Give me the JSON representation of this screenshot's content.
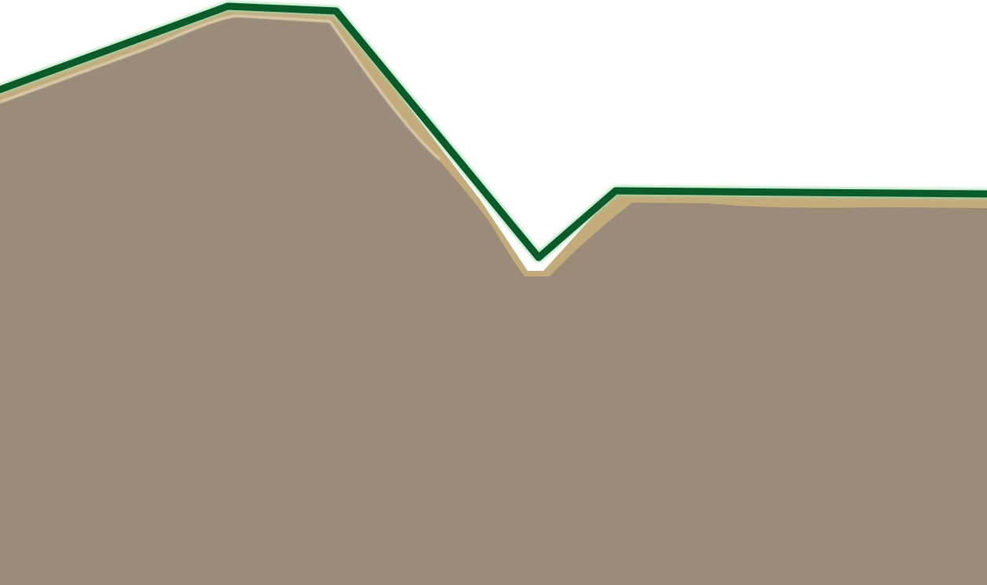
{
  "scene": {
    "type": "terrain-side-view",
    "colors": {
      "sky": "#ffffff",
      "dirt": "#9a8c78",
      "sand_layer": "#c4ab7b",
      "highlight": "#e9e0cc",
      "grass": "#0b5a2a",
      "grass_glow": "#9fd9ac"
    }
  }
}
